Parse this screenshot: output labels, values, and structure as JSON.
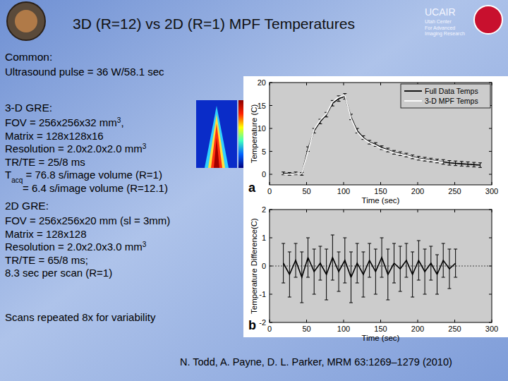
{
  "slide": {
    "title": "3D (R=12) vs 2D (R=1) MPF Temperatures",
    "org": {
      "name": "UCAIR",
      "lines": [
        "Utah Center",
        "For Advanced",
        "Imaging Research"
      ]
    },
    "blocks": [
      {
        "heading": "Common:",
        "lines": [
          [
            {
              "text": "Ultrasound pulse = 36 W/58.1 sec"
            }
          ]
        ]
      },
      {
        "heading": "3-D GRE:",
        "lines": [
          [
            {
              "text": "FOV = 256x256x32 mm"
            },
            {
              "text": "3",
              "style": "sup"
            },
            {
              "text": ","
            }
          ],
          [
            {
              "text": "Matrix = 128x128x16"
            }
          ],
          [
            {
              "text": "Resolution = 2.0x2.0x2.0 mm"
            },
            {
              "text": "3",
              "style": "sup"
            }
          ],
          [
            {
              "text": "TR/TE = 25/8 ms"
            }
          ],
          [
            {
              "text": "T"
            },
            {
              "text": "acq",
              "style": "sub"
            },
            {
              "text": " = 76.8 s/image volume (R=1)"
            }
          ],
          [
            {
              "text": "      = 6.4 s/image volume (R=12.1)"
            }
          ]
        ]
      },
      {
        "heading": "2D GRE:",
        "lines": [
          [
            {
              "text": "FOV = 256x256x20 mm (sl = 3mm)"
            }
          ],
          [
            {
              "text": "Matrix = 128x128"
            }
          ],
          [
            {
              "text": "Resolution = 2.0x2.0x3.0 mm"
            },
            {
              "text": "3",
              "style": "sup"
            }
          ],
          [
            {
              "text": "TR/TE = 65/8 ms;"
            }
          ],
          [
            {
              "text": "8.3 sec per scan (R=1)"
            }
          ]
        ]
      }
    ],
    "note": "Scans repeated 8x for variability",
    "citation": "N. Todd, A. Payne, D. L. Parker, MRM 63:1269–1279 (2010)"
  },
  "chart_data": [
    {
      "type": "line",
      "panel_label": "a",
      "x_label": "Time (sec)",
      "y_label": "Temperature (C)",
      "xlim": [
        0,
        300
      ],
      "xticks": [
        0,
        50,
        100,
        150,
        200,
        250,
        300
      ],
      "ylim": [
        -2.3,
        20
      ],
      "yticks": [
        0,
        5,
        10,
        15,
        20
      ],
      "grid": false,
      "legend": "upper-right",
      "x": [
        18.7,
        27,
        35.3,
        43.6,
        51.9,
        60.2,
        68.5,
        76.8,
        85.1,
        93.4,
        101.7,
        110,
        118.3,
        126.6,
        134.9,
        143.2,
        151.5,
        159.8,
        168.1,
        176.4,
        184.7,
        193,
        201.3,
        209.6,
        217.9,
        226.2,
        234.5,
        242.8,
        251.1,
        259.4,
        267.7,
        276,
        284.3
      ],
      "series": [
        {
          "name": "Full Data Temps",
          "color": "#000000",
          "values": [
            0.2,
            0.1,
            0.2,
            0.1,
            5.5,
            9.5,
            11.5,
            13,
            15.5,
            16.5,
            17,
            12.5,
            9.5,
            8,
            7,
            6.5,
            5.8,
            5.3,
            4.8,
            4.5,
            4.2,
            3.8,
            3.5,
            3.3,
            3.1,
            2.9,
            2.7,
            2.5,
            2.4,
            2.3,
            2.2,
            2.1,
            2
          ],
          "errors": [
            0.3,
            0.3,
            0.3,
            0.3,
            0.5,
            0.5,
            0.5,
            0.5,
            0.6,
            0.6,
            0.6,
            0.6,
            0.5,
            0.4,
            0.4,
            0.4,
            0.4,
            0.4,
            0.4,
            0.4,
            0.4,
            0.4,
            0.4,
            0.4,
            0.4,
            0.4,
            0.5,
            0.5,
            0.5,
            0.5,
            0.5,
            0.5,
            0.5
          ]
        },
        {
          "name": "3-D MPF Temps",
          "color": "#ffffff",
          "values": [
            0,
            0,
            0.1,
            0.2,
            5,
            9.8,
            11.8,
            13.2,
            15.8,
            16.8,
            17.2,
            12.2,
            9.2,
            7.8,
            6.9,
            6.3,
            5.6,
            5.2,
            4.7,
            4.4,
            4.1,
            3.7,
            3.4,
            3.2,
            3,
            2.8,
            2.6,
            null,
            null,
            null,
            null,
            null,
            null
          ]
        }
      ]
    },
    {
      "type": "line",
      "panel_label": "b",
      "x_label": "Time (sec)",
      "y_label": "Temperature Difference(C)",
      "xlim": [
        0,
        300
      ],
      "xticks": [
        0,
        50,
        100,
        150,
        200,
        250,
        300
      ],
      "ylim": [
        -2,
        2
      ],
      "yticks": [
        -2,
        -1,
        0,
        1,
        2
      ],
      "grid": false,
      "hline": 0,
      "x": [
        18.7,
        27,
        35.3,
        43.6,
        51.9,
        60.2,
        68.5,
        76.8,
        85.1,
        93.4,
        101.7,
        110,
        118.3,
        126.6,
        134.9,
        143.2,
        151.5,
        159.8,
        168.1,
        176.4,
        184.7,
        193,
        201.3,
        209.6,
        217.9,
        226.2,
        234.5,
        242.8,
        251.1
      ],
      "series": [
        {
          "name": "Difference",
          "color": "#000000",
          "values": [
            0.1,
            -0.3,
            0.2,
            -0.4,
            0.3,
            -0.2,
            0.1,
            -0.3,
            0.3,
            -0.2,
            0.2,
            -0.4,
            0.1,
            -0.3,
            0.2,
            -0.2,
            0.3,
            -0.3,
            0.1,
            -0.1,
            0.2,
            -0.3,
            0.2,
            -0.2,
            0.1,
            -0.3,
            0.2,
            -0.1,
            0.1
          ],
          "errors": [
            0.7,
            0.8,
            0.6,
            0.9,
            0.7,
            0.8,
            0.6,
            0.9,
            0.8,
            0.7,
            0.8,
            0.9,
            0.7,
            0.8,
            0.6,
            0.8,
            0.7,
            0.9,
            0.7,
            0.8,
            0.6,
            0.8,
            0.7,
            0.8,
            0.6,
            0.7,
            0.6,
            0.7,
            0.5
          ]
        }
      ]
    }
  ]
}
